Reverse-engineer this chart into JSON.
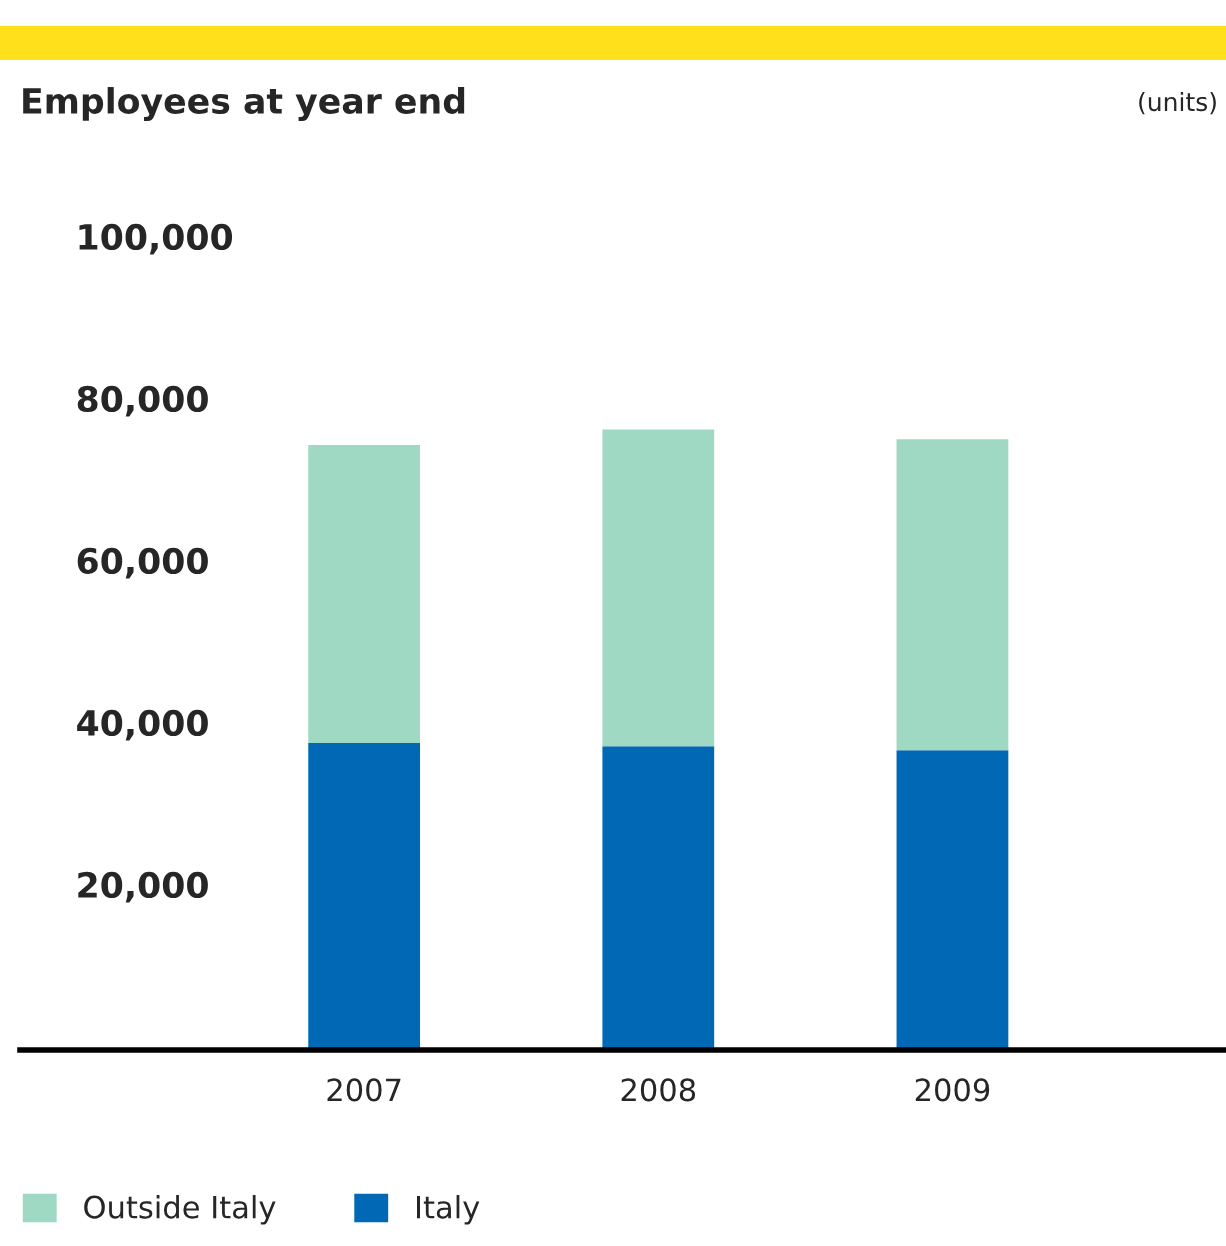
{
  "chart_data": {
    "type": "bar",
    "title": "Employees at year end",
    "annotations": [
      "(units)"
    ],
    "categories": [
      "2007",
      "2008",
      "2009"
    ],
    "stacked": true,
    "series": [
      {
        "name": "Italy",
        "color": "#0068b5",
        "values": [
          37900,
          37500,
          37000
        ]
      },
      {
        "name": "Outside Italy",
        "color": "#9fd8c3",
        "values": [
          36800,
          39100,
          38400
        ]
      }
    ],
    "ylim": [
      0,
      100000
    ],
    "yticks": [
      {
        "value": 0,
        "label": null
      },
      {
        "value": 20000,
        "label": "20,000"
      },
      {
        "value": 40000,
        "label": "40,000"
      },
      {
        "value": 60000,
        "label": "60,000"
      },
      {
        "value": 80000,
        "label": "80,000"
      },
      {
        "value": 100000,
        "label": "100,000"
      }
    ],
    "grid": false,
    "legend": "bottom left"
  }
}
